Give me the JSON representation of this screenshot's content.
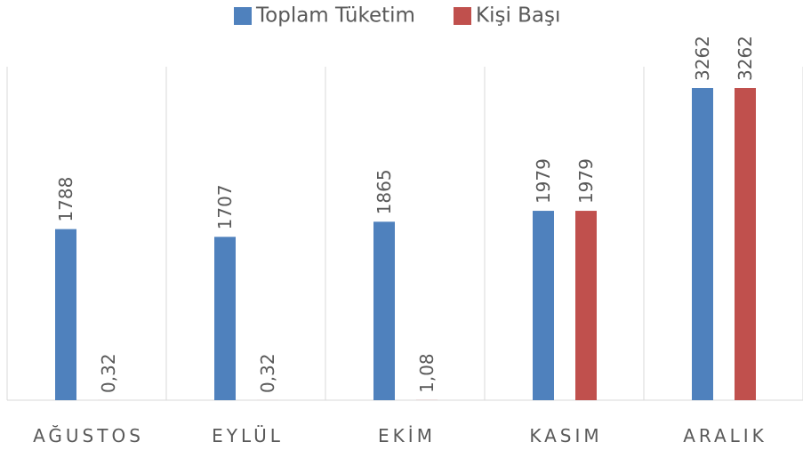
{
  "chart_data": {
    "type": "bar",
    "categories": [
      "AĞUSTOS",
      "EYLÜL",
      "EKİM",
      "KASIM",
      "ARALIK"
    ],
    "series": [
      {
        "name": "Toplam Tüketim",
        "color": "#4f81bd",
        "values": [
          1788,
          1707,
          1865,
          1979,
          3262
        ]
      },
      {
        "name": "Kişi Başı",
        "color": "#c0504d",
        "values": [
          0.32,
          0.32,
          1.08,
          1979,
          3262
        ],
        "value_labels": [
          "0,32",
          "0,32",
          "1,08",
          "1979",
          "3262"
        ]
      }
    ],
    "ylim": [
      0,
      3500
    ],
    "legend": "top"
  }
}
